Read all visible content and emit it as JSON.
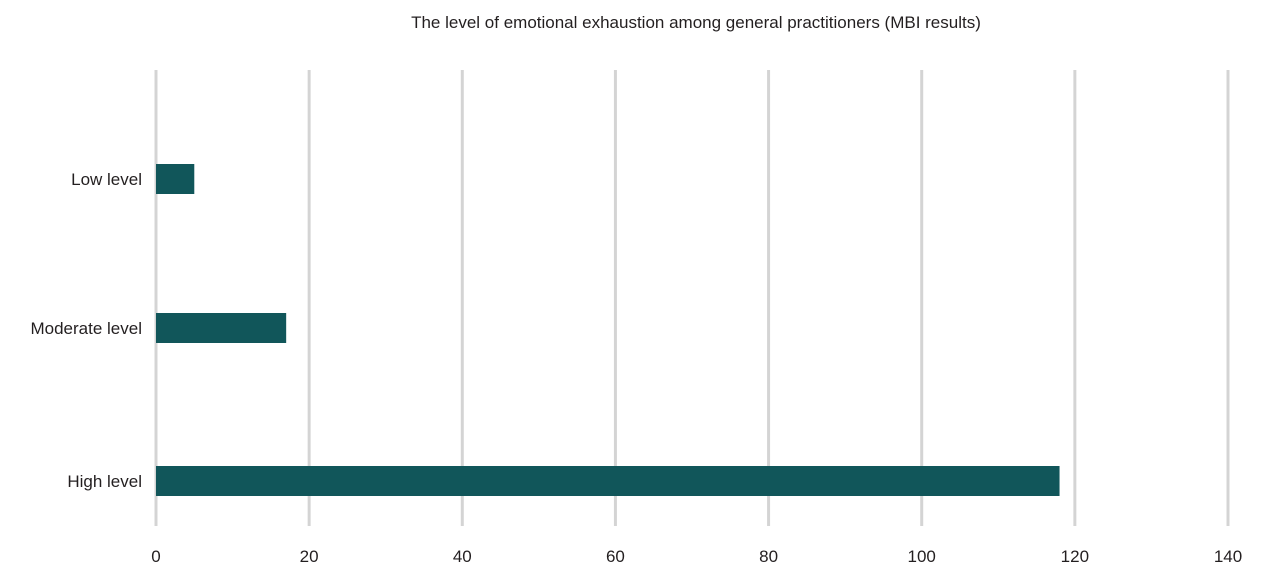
{
  "chart_data": {
    "type": "bar",
    "orientation": "horizontal",
    "title": "The level of emotional exhaustion among general practitioners (MBI results)",
    "xlabel": "",
    "ylabel": "",
    "categories": [
      "Low level",
      "Moderate level",
      "High level"
    ],
    "values": [
      5,
      17,
      118
    ],
    "xlim": [
      0,
      140
    ],
    "xticks": [
      0,
      20,
      40,
      60,
      80,
      100,
      120,
      140
    ],
    "grid": "vertical",
    "legend": "none",
    "bar_color": "#11565a",
    "grid_color": "#d4d4d4"
  }
}
